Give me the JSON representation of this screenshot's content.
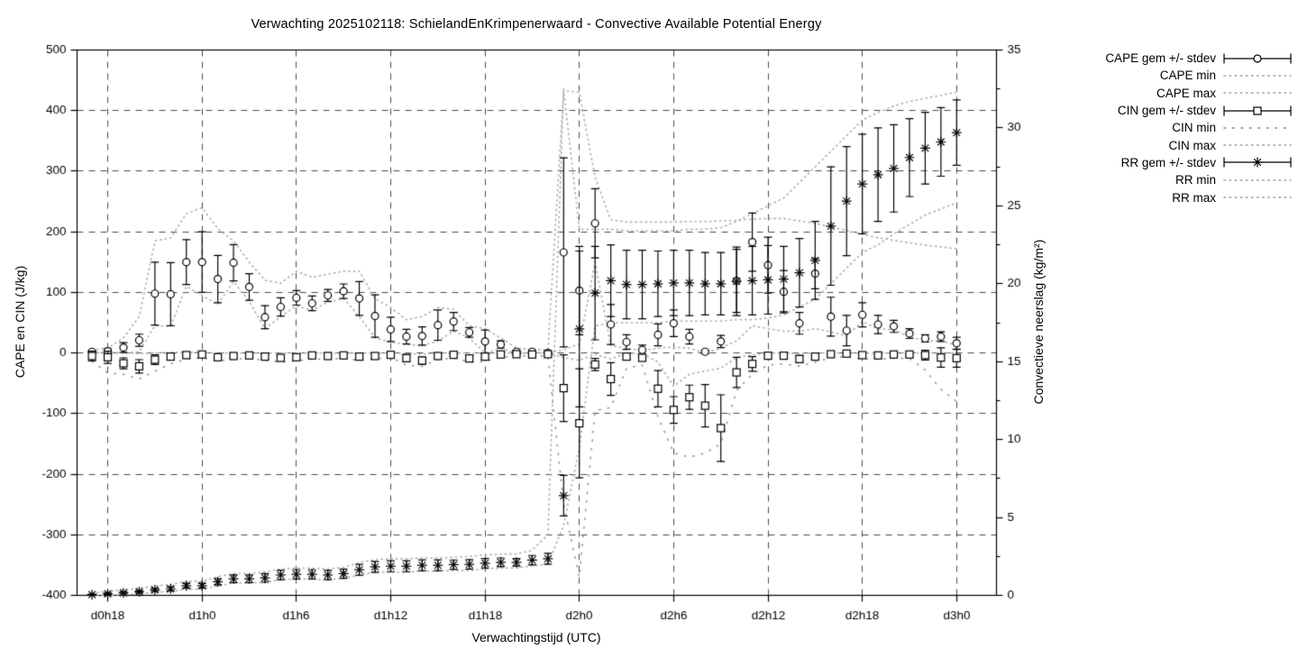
{
  "chart": {
    "title": "Verwachting 2025102118: SchielandEnKrimpenerwaard - Convective Available Potential Energy",
    "xlabel": "Verwachtingstijd (UTC)",
    "ylabel_left": "CAPE en CIN (J/kg)",
    "ylabel_right": "Convectieve neerslag (kg/m²)",
    "colors": {
      "series": "#000000",
      "envelope": "#b0b0b0",
      "envelope_dark": "#9a9a9a",
      "grid": "#4a4a4a",
      "background": "#ffffff"
    },
    "legend": [
      {
        "label": "CAPE gem +/- stdev",
        "type": "errorbar",
        "marker": "circle"
      },
      {
        "label": "CAPE min",
        "type": "dotted",
        "sparse": false
      },
      {
        "label": "CAPE max",
        "type": "dotted",
        "sparse": false
      },
      {
        "label": "CIN gem +/- stdev",
        "type": "errorbar",
        "marker": "square"
      },
      {
        "label": "CIN min",
        "type": "dotted",
        "sparse": true
      },
      {
        "label": "CIN max",
        "type": "dotted",
        "sparse": false
      },
      {
        "label": "RR gem +/- stdev",
        "type": "errorbar",
        "marker": "asterisk"
      },
      {
        "label": "RR min",
        "type": "dotted",
        "sparse": false
      },
      {
        "label": "RR max",
        "type": "dotted",
        "sparse": false
      }
    ]
  },
  "chart_data": {
    "type": "line",
    "style_note": "gnuplot-style errorbar series with dotted min/max envelopes",
    "x": [
      "d0h17",
      "d0h18",
      "d0h19",
      "d0h20",
      "d0h21",
      "d0h22",
      "d0h23",
      "d1h0",
      "d1h1",
      "d1h2",
      "d1h3",
      "d1h4",
      "d1h5",
      "d1h6",
      "d1h7",
      "d1h8",
      "d1h9",
      "d1h10",
      "d1h11",
      "d1h12",
      "d1h13",
      "d1h14",
      "d1h15",
      "d1h16",
      "d1h17",
      "d1h18",
      "d1h19",
      "d1h20",
      "d1h21",
      "d1h22",
      "d1h23",
      "d2h0",
      "d2h1",
      "d2h2",
      "d2h3",
      "d2h4",
      "d2h5",
      "d2h6",
      "d2h7",
      "d2h8",
      "d2h9",
      "d2h10",
      "d2h11",
      "d2h12",
      "d2h13",
      "d2h14",
      "d2h15",
      "d2h16",
      "d2h17",
      "d2h18",
      "d2h19",
      "d2h20",
      "d2h21",
      "d2h22",
      "d2h23",
      "d3h0"
    ],
    "x_ticks": [
      {
        "label": "d0h18",
        "index": 1
      },
      {
        "label": "d1h0",
        "index": 7
      },
      {
        "label": "d1h6",
        "index": 13
      },
      {
        "label": "d1h12",
        "index": 19
      },
      {
        "label": "d1h18",
        "index": 25
      },
      {
        "label": "d2h0",
        "index": 31
      },
      {
        "label": "d2h6",
        "index": 37
      },
      {
        "label": "d2h12",
        "index": 43
      },
      {
        "label": "d2h18",
        "index": 49
      },
      {
        "label": "d3h0",
        "index": 55
      }
    ],
    "y_left": {
      "min": -400,
      "max": 500,
      "step": 100
    },
    "y_right": {
      "min": 0,
      "max": 35,
      "step": 5,
      "minor_step": 2.5
    },
    "series": [
      {
        "name": "CAPE gem +/- stdev",
        "axis": "left",
        "style": "errorbar",
        "marker": "circle",
        "values": [
          2,
          3,
          9,
          21,
          98,
          97,
          150,
          150,
          122,
          149,
          109,
          59,
          76,
          91,
          82,
          95,
          102,
          90,
          61,
          39,
          27,
          28,
          46,
          52,
          34,
          19,
          14,
          2,
          2,
          0,
          166,
          103,
          214,
          47,
          18,
          5,
          30,
          49,
          27,
          2,
          19,
          119,
          183,
          145,
          101,
          49,
          131,
          60,
          37,
          63,
          47,
          44,
          32,
          24,
          27,
          16
        ],
        "stdev": [
          2,
          4,
          8,
          10,
          52,
          52,
          37,
          50,
          39,
          30,
          22,
          19,
          15,
          12,
          12,
          10,
          12,
          28,
          35,
          20,
          12,
          15,
          25,
          15,
          8,
          19,
          6,
          2,
          2,
          1,
          156,
          73,
          57,
          33,
          12,
          8,
          18,
          22,
          12,
          3,
          10,
          52,
          48,
          46,
          35,
          18,
          25,
          32,
          25,
          20,
          15,
          10,
          8,
          6,
          8,
          10
        ]
      },
      {
        "name": "CAPE min",
        "axis": "left",
        "style": "dotted",
        "sparse": false,
        "values": [
          0,
          0,
          0,
          2,
          45,
          44,
          110,
          95,
          80,
          118,
          85,
          40,
          60,
          78,
          70,
          84,
          90,
          60,
          25,
          18,
          14,
          12,
          20,
          36,
          25,
          0,
          7,
          0,
          0,
          0,
          5,
          15,
          150,
          12,
          8,
          4,
          8,
          10,
          8,
          0,
          8,
          20,
          45,
          40,
          36,
          36,
          40,
          35,
          28,
          52,
          40,
          38,
          27,
          20,
          20,
          13
        ]
      },
      {
        "name": "CAPE max",
        "axis": "left",
        "style": "dotted",
        "sparse": false,
        "values": [
          5,
          8,
          25,
          60,
          185,
          190,
          230,
          240,
          205,
          185,
          150,
          120,
          115,
          135,
          125,
          130,
          135,
          135,
          90,
          75,
          55,
          60,
          75,
          72,
          45,
          40,
          25,
          8,
          6,
          5,
          433,
          430,
          290,
          220,
          216,
          216,
          216,
          216,
          217,
          217,
          218,
          219,
          221,
          222,
          222,
          218,
          214,
          208,
          202,
          196,
          190,
          186,
          182,
          178,
          175,
          172
        ]
      },
      {
        "name": "CIN gem +/- stdev",
        "axis": "left",
        "style": "errorbar",
        "marker": "square",
        "values": [
          -5,
          -7,
          -17,
          -22,
          -11,
          -6,
          -3.5,
          -2.5,
          -7,
          -5,
          -4,
          -6,
          -8,
          -7,
          -4,
          -5,
          -4,
          -6,
          -5,
          -3,
          -8.5,
          -12.5,
          -5,
          -3,
          -9,
          -6,
          -2.5,
          -2,
          -2.5,
          -2,
          -58,
          -116,
          -19,
          -43,
          -6,
          -8,
          -59,
          -94,
          -73,
          -87,
          -124,
          -32,
          -18,
          -4.5,
          -4.5,
          -10,
          -6,
          -2,
          -1,
          -3.5,
          -4,
          -2.5,
          -2.5,
          -3.5,
          -7.5,
          -8.5
        ],
        "stdev": [
          8,
          10,
          9,
          11,
          8,
          5,
          3,
          2,
          4,
          3,
          3,
          4,
          5,
          4,
          3,
          3,
          3,
          4,
          3,
          2,
          6,
          6,
          3,
          2,
          4,
          4,
          2,
          1,
          1,
          1,
          55,
          90,
          10,
          27,
          4,
          5,
          30,
          22,
          20,
          35,
          55,
          25,
          12,
          4,
          4,
          6,
          4,
          2,
          2,
          3,
          3,
          3,
          3,
          8,
          16,
          15
        ]
      },
      {
        "name": "CIN min",
        "axis": "left",
        "style": "dotted",
        "sparse": true,
        "values": [
          -14,
          -33,
          -35,
          -43,
          -30,
          -18,
          -10,
          -8,
          -13,
          -10,
          -9,
          -12,
          -15,
          -13,
          -10,
          -10,
          -9,
          -12,
          -10,
          -7,
          -20,
          -22,
          -11,
          -8,
          -15,
          -14,
          -7,
          -5,
          -5,
          -5,
          -250,
          -370,
          -95,
          -90,
          -25,
          -20,
          -105,
          -165,
          -172,
          -165,
          -150,
          -62,
          -35,
          -20,
          -18,
          -22,
          -15,
          -8,
          -6,
          -10,
          -10,
          -9,
          -9,
          -28,
          -60,
          -80
        ]
      },
      {
        "name": "CIN max",
        "axis": "left",
        "style": "dotted",
        "sparse": false,
        "values": [
          1,
          1,
          0,
          -1,
          0,
          1,
          1,
          1,
          0,
          0,
          0,
          0,
          0,
          0,
          0,
          0,
          0,
          0,
          0,
          0,
          -1,
          -2,
          0,
          0,
          0,
          0,
          0,
          0,
          0,
          1,
          -8,
          -12,
          -2,
          -10,
          0,
          -1,
          -15,
          -55,
          -35,
          -30,
          -25,
          -8,
          -3,
          0,
          0,
          -1,
          0,
          0,
          0,
          0,
          0,
          0,
          0,
          0,
          0,
          0
        ]
      },
      {
        "name": "RR gem +/- stdev",
        "axis": "right",
        "style": "errorbar",
        "marker": "asterisk",
        "values": [
          0.05,
          0.1,
          0.16,
          0.23,
          0.35,
          0.42,
          0.62,
          0.62,
          0.87,
          1.06,
          1.06,
          1.12,
          1.31,
          1.35,
          1.35,
          1.31,
          1.39,
          1.64,
          1.83,
          1.87,
          1.87,
          1.93,
          1.93,
          1.97,
          1.99,
          2.06,
          2.12,
          2.12,
          2.26,
          2.35,
          6.4,
          17.1,
          19.4,
          20.2,
          19.95,
          19.95,
          20.0,
          20.05,
          20.05,
          20.0,
          20.0,
          20.15,
          20.2,
          20.25,
          20.3,
          20.7,
          21.5,
          23.7,
          25.3,
          26.4,
          27.0,
          27.4,
          28.1,
          28.7,
          29.1,
          29.7
        ],
        "stdev": [
          0.03,
          0.05,
          0.06,
          0.08,
          0.1,
          0.12,
          0.15,
          0.15,
          0.2,
          0.25,
          0.25,
          0.28,
          0.3,
          0.3,
          0.3,
          0.3,
          0.3,
          0.35,
          0.35,
          0.35,
          0.35,
          0.35,
          0.35,
          0.3,
          0.3,
          0.3,
          0.28,
          0.25,
          0.3,
          0.35,
          1.3,
          5.0,
          3.0,
          2.3,
          2.2,
          2.2,
          2.1,
          2.1,
          2.1,
          2.0,
          2.0,
          2.2,
          2.2,
          2.2,
          2.1,
          2.2,
          2.5,
          3.8,
          3.5,
          3.2,
          3.0,
          2.8,
          2.5,
          2.3,
          2.2,
          2.1
        ]
      },
      {
        "name": "RR min",
        "axis": "right",
        "style": "dotted",
        "sparse": false,
        "values": [
          0,
          0,
          0.05,
          0.1,
          0.2,
          0.25,
          0.4,
          0.4,
          0.6,
          0.8,
          0.8,
          0.85,
          1.0,
          1.05,
          1.05,
          1.0,
          1.1,
          1.3,
          1.5,
          1.5,
          1.5,
          1.55,
          1.55,
          1.6,
          1.6,
          1.7,
          1.75,
          1.75,
          1.9,
          2.0,
          4.5,
          9.5,
          17.3,
          17.5,
          17.5,
          17.5,
          17.5,
          17.6,
          17.6,
          17.6,
          17.6,
          17.7,
          17.7,
          17.8,
          18.0,
          18.5,
          19.0,
          20.0,
          21.0,
          22.0,
          22.5,
          23.2,
          23.8,
          24.4,
          24.8,
          25.2
        ]
      },
      {
        "name": "RR max",
        "axis": "right",
        "style": "dotted",
        "sparse": false,
        "values": [
          0.15,
          0.25,
          0.35,
          0.45,
          0.6,
          0.7,
          0.9,
          0.9,
          1.2,
          1.4,
          1.4,
          1.5,
          1.7,
          1.75,
          1.75,
          1.7,
          1.8,
          2.1,
          2.3,
          2.35,
          2.35,
          2.4,
          2.4,
          2.45,
          2.5,
          2.6,
          2.65,
          2.65,
          2.9,
          3.9,
          32.5,
          23.5,
          23.5,
          23.5,
          23.4,
          23.4,
          23.4,
          23.4,
          23.5,
          23.5,
          23.6,
          24.0,
          24.5,
          25.0,
          25.5,
          26.5,
          27.5,
          28.5,
          29.5,
          30.5,
          31.0,
          31.4,
          31.7,
          31.9,
          32.1,
          32.3
        ]
      }
    ]
  }
}
